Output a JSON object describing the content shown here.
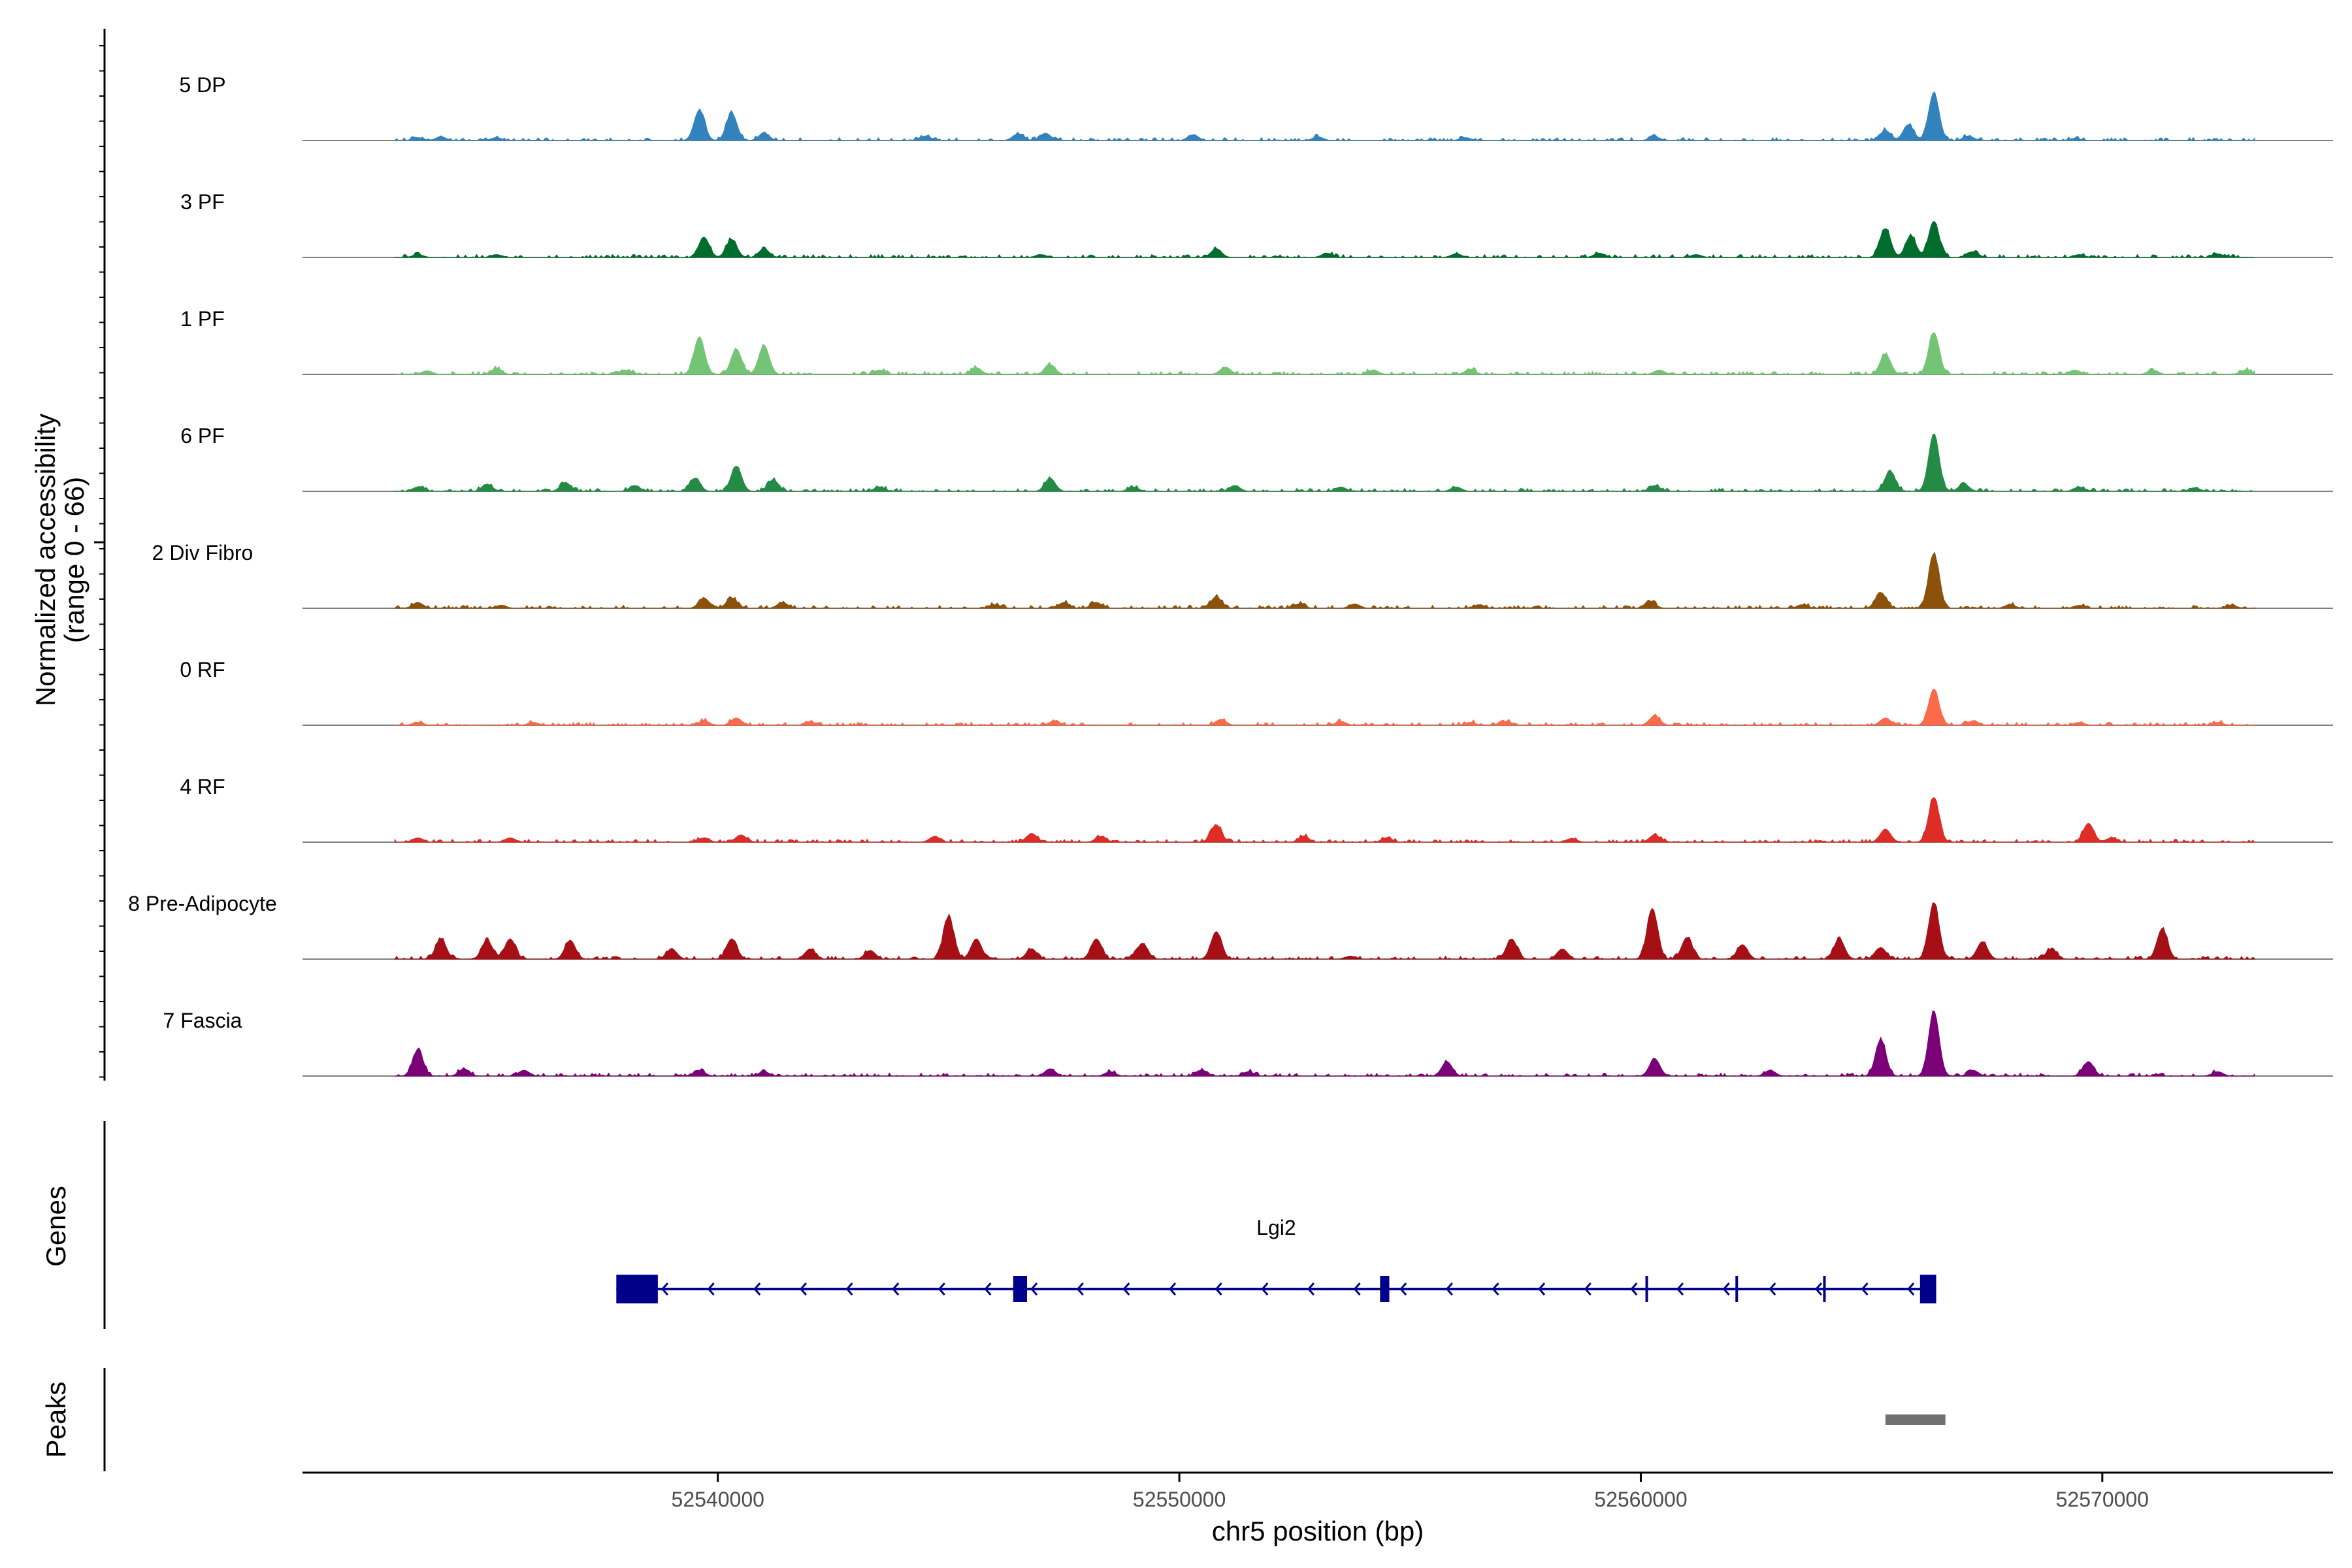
{
  "chart_data": {
    "type": "area",
    "title": "",
    "ylabel_line1": "Normalized accessibility",
    "ylabel_line2": "(range 0 - 66)",
    "ylim": [
      0,
      66
    ],
    "xlabel": "chr5 position (bp)",
    "xlim": [
      52531000,
      52575000
    ],
    "x_ticks": [
      52540000,
      52550000,
      52560000,
      52570000
    ],
    "x_tick_labels": [
      "52540000",
      "52550000",
      "52560000",
      "52570000"
    ],
    "tracks": [
      {
        "name": "5 DP",
        "color": "#3182bd",
        "peaks": [
          [
            52533500,
            4
          ],
          [
            52534000,
            5
          ],
          [
            52535200,
            4
          ],
          [
            52539600,
            42
          ],
          [
            52540300,
            38
          ],
          [
            52541000,
            10
          ],
          [
            52544500,
            6
          ],
          [
            52546500,
            9
          ],
          [
            52547100,
            10
          ],
          [
            52550300,
            8
          ],
          [
            52553000,
            5
          ],
          [
            52556200,
            4
          ],
          [
            52560300,
            5
          ],
          [
            52565300,
            14
          ],
          [
            52565800,
            22
          ],
          [
            52566350,
            66
          ],
          [
            52567100,
            6
          ],
          [
            52569400,
            3
          ]
        ]
      },
      {
        "name": "3 PF",
        "color": "#006d2c",
        "peaks": [
          [
            52533500,
            4
          ],
          [
            52535200,
            4
          ],
          [
            52539700,
            28
          ],
          [
            52540300,
            25
          ],
          [
            52541000,
            12
          ],
          [
            52547000,
            4
          ],
          [
            52550800,
            12
          ],
          [
            52553200,
            6
          ],
          [
            52556000,
            5
          ],
          [
            52559100,
            6
          ],
          [
            52561200,
            4
          ],
          [
            52565300,
            40
          ],
          [
            52565850,
            30
          ],
          [
            52566350,
            50
          ],
          [
            52567200,
            8
          ],
          [
            52569500,
            4
          ],
          [
            52572500,
            5
          ]
        ]
      },
      {
        "name": "1 PF",
        "color": "#74c476",
        "peaks": [
          [
            52533700,
            5
          ],
          [
            52535200,
            8
          ],
          [
            52538000,
            6
          ],
          [
            52539600,
            52
          ],
          [
            52540400,
            35
          ],
          [
            52541000,
            40
          ],
          [
            52543500,
            6
          ],
          [
            52545600,
            9
          ],
          [
            52547200,
            13
          ],
          [
            52551000,
            10
          ],
          [
            52554200,
            6
          ],
          [
            52556300,
            7
          ],
          [
            52560400,
            6
          ],
          [
            52565300,
            28
          ],
          [
            52566350,
            58
          ],
          [
            52569400,
            6
          ],
          [
            52571100,
            6
          ],
          [
            52573100,
            6
          ]
        ]
      },
      {
        "name": "6 PF",
        "color": "#238b45",
        "peaks": [
          [
            52533500,
            6
          ],
          [
            52535000,
            10
          ],
          [
            52536700,
            12
          ],
          [
            52538200,
            8
          ],
          [
            52539500,
            18
          ],
          [
            52540400,
            35
          ],
          [
            52541200,
            16
          ],
          [
            52543500,
            6
          ],
          [
            52547200,
            18
          ],
          [
            52549000,
            6
          ],
          [
            52551200,
            8
          ],
          [
            52553500,
            6
          ],
          [
            52556000,
            6
          ],
          [
            52560300,
            8
          ],
          [
            52565400,
            28
          ],
          [
            52566350,
            80
          ],
          [
            52567000,
            10
          ],
          [
            52569500,
            6
          ],
          [
            52572000,
            5
          ]
        ]
      },
      {
        "name": "2 Div Fibro",
        "color": "#8c510a",
        "peaks": [
          [
            52533500,
            8
          ],
          [
            52535300,
            4
          ],
          [
            52539700,
            14
          ],
          [
            52540300,
            14
          ],
          [
            52541400,
            8
          ],
          [
            52546000,
            5
          ],
          [
            52547500,
            8
          ],
          [
            52548200,
            8
          ],
          [
            52550800,
            16
          ],
          [
            52552600,
            6
          ],
          [
            52553800,
            6
          ],
          [
            52556500,
            5
          ],
          [
            52560200,
            10
          ],
          [
            52563500,
            5
          ],
          [
            52565200,
            22
          ],
          [
            52566350,
            75
          ],
          [
            52568000,
            5
          ],
          [
            52569500,
            4
          ],
          [
            52572800,
            4
          ]
        ]
      },
      {
        "name": "0 RF",
        "color": "#fb6a4a",
        "peaks": [
          [
            52533500,
            4
          ],
          [
            52536000,
            4
          ],
          [
            52539700,
            6
          ],
          [
            52540400,
            10
          ],
          [
            52542000,
            5
          ],
          [
            52547300,
            6
          ],
          [
            52550900,
            8
          ],
          [
            52553500,
            5
          ],
          [
            52556300,
            4
          ],
          [
            52557100,
            5
          ],
          [
            52560300,
            13
          ],
          [
            52565300,
            10
          ],
          [
            52566350,
            50
          ],
          [
            52567200,
            6
          ],
          [
            52569500,
            4
          ],
          [
            52572500,
            4
          ]
        ]
      },
      {
        "name": "4 RF",
        "color": "#de2d26",
        "peaks": [
          [
            52533500,
            6
          ],
          [
            52535500,
            6
          ],
          [
            52539700,
            6
          ],
          [
            52540500,
            10
          ],
          [
            52544700,
            8
          ],
          [
            52546800,
            12
          ],
          [
            52548300,
            8
          ],
          [
            52550800,
            24
          ],
          [
            52552700,
            8
          ],
          [
            52554500,
            6
          ],
          [
            52558500,
            5
          ],
          [
            52560300,
            10
          ],
          [
            52565300,
            18
          ],
          [
            52566350,
            62
          ],
          [
            52569700,
            26
          ],
          [
            52570200,
            6
          ]
        ]
      },
      {
        "name": "8 Pre-Adipocyte",
        "color": "#a50f15",
        "peaks": [
          [
            52534000,
            28
          ],
          [
            52535000,
            26
          ],
          [
            52535500,
            28
          ],
          [
            52536800,
            26
          ],
          [
            52539000,
            14
          ],
          [
            52540300,
            28
          ],
          [
            52542000,
            14
          ],
          [
            52543300,
            12
          ],
          [
            52545000,
            58
          ],
          [
            52545600,
            28
          ],
          [
            52546800,
            14
          ],
          [
            52548200,
            28
          ],
          [
            52549200,
            22
          ],
          [
            52550800,
            38
          ],
          [
            52553700,
            4
          ],
          [
            52557200,
            28
          ],
          [
            52558300,
            14
          ],
          [
            52560250,
            70
          ],
          [
            52561000,
            30
          ],
          [
            52562200,
            20
          ],
          [
            52564300,
            28
          ],
          [
            52565200,
            16
          ],
          [
            52566350,
            78
          ],
          [
            52567400,
            24
          ],
          [
            52568900,
            14
          ],
          [
            52571300,
            42
          ]
        ]
      },
      {
        "name": "7 Fascia",
        "color": "#7a0177",
        "peaks": [
          [
            52533500,
            36
          ],
          [
            52534500,
            10
          ],
          [
            52535800,
            8
          ],
          [
            52539600,
            8
          ],
          [
            52541000,
            6
          ],
          [
            52547200,
            10
          ],
          [
            52548500,
            6
          ],
          [
            52550500,
            8
          ],
          [
            52551500,
            6
          ],
          [
            52555800,
            20
          ],
          [
            52560300,
            24
          ],
          [
            52562800,
            8
          ],
          [
            52565200,
            50
          ],
          [
            52566350,
            90
          ],
          [
            52567200,
            8
          ],
          [
            52569700,
            20
          ],
          [
            52572500,
            6
          ]
        ]
      }
    ],
    "genes_label": "Genes",
    "gene": {
      "name": "Lgi2",
      "strand": "-",
      "start": 52537800,
      "end": 52566400,
      "exons": [
        [
          52537800,
          52538700
        ],
        [
          52546400,
          52546700
        ],
        [
          52554350,
          52554550
        ],
        [
          52560100,
          52560150
        ],
        [
          52562050,
          52562100
        ],
        [
          52563950,
          52564000
        ],
        [
          52566050,
          52566400
        ]
      ]
    },
    "peaks_label": "Peaks",
    "peak_regions": [
      [
        52565300,
        52566600
      ]
    ]
  }
}
